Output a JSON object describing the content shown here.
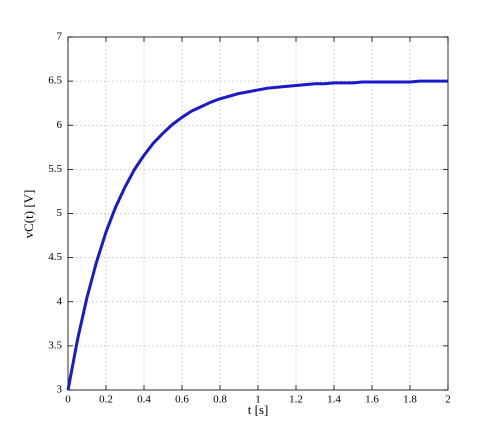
{
  "chart_data": {
    "type": "line",
    "xlabel": "t [s]",
    "ylabel": "vC(t) [V]",
    "x": [
      0,
      0.05,
      0.1,
      0.15,
      0.2,
      0.25,
      0.3,
      0.35,
      0.4,
      0.45,
      0.5,
      0.55,
      0.6,
      0.65,
      0.7,
      0.75,
      0.8,
      0.85,
      0.9,
      0.95,
      1,
      1.05,
      1.1,
      1.15,
      1.2,
      1.25,
      1.3,
      1.35,
      1.4,
      1.45,
      1.5,
      1.55,
      1.6,
      1.65,
      1.7,
      1.75,
      1.8,
      1.85,
      1.9,
      1.95,
      2
    ],
    "series": [
      {
        "color": "#1a1acc",
        "values": [
          3.0,
          3.57,
          4.05,
          4.45,
          4.79,
          5.07,
          5.3,
          5.5,
          5.66,
          5.8,
          5.91,
          6.01,
          6.09,
          6.16,
          6.21,
          6.26,
          6.3,
          6.33,
          6.36,
          6.38,
          6.4,
          6.42,
          6.43,
          6.44,
          6.45,
          6.46,
          6.47,
          6.47,
          6.48,
          6.48,
          6.48,
          6.49,
          6.49,
          6.49,
          6.49,
          6.49,
          6.49,
          6.5,
          6.5,
          6.5,
          6.5
        ]
      }
    ],
    "xlim": [
      0,
      2
    ],
    "xticks": [
      0,
      0.2,
      0.4,
      0.6,
      0.8,
      1,
      1.2,
      1.4,
      1.6,
      1.8,
      2
    ],
    "ylim": [
      3,
      7
    ],
    "yticks": [
      3,
      3.5,
      4,
      4.5,
      5,
      5.5,
      6,
      6.5,
      7
    ],
    "grid": true
  }
}
